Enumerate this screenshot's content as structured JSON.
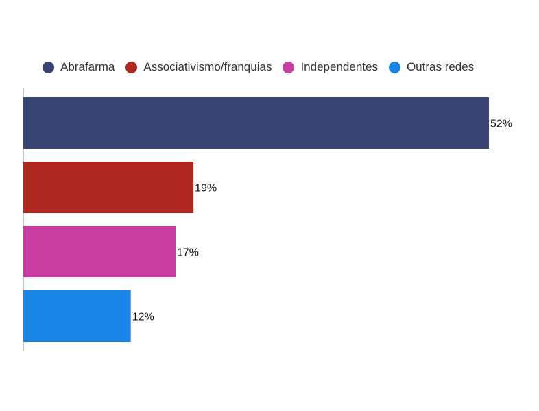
{
  "chart_data": {
    "type": "bar",
    "orientation": "horizontal",
    "categories": [
      "Abrafarma",
      "Associativismo/franquias",
      "Independentes",
      "Outras redes"
    ],
    "values": [
      52,
      19,
      17,
      12
    ],
    "value_labels": [
      "52%",
      "19%",
      "17%",
      "12%"
    ],
    "colors": [
      "#394574",
      "#B0271F",
      "#C93CA2",
      "#1784E6"
    ],
    "legend_position": "top",
    "grid": false,
    "xlim": [
      0,
      52
    ]
  }
}
